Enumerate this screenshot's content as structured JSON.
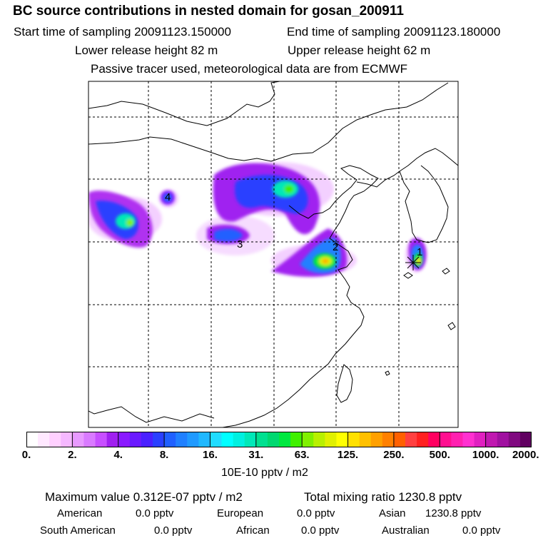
{
  "header": {
    "title": "BC  source contributions in nested domain for gosan_200911",
    "start_time": "Start time of sampling 20091123.150000",
    "end_time": "End time of sampling 20091123.180000",
    "lower_height": "Lower release height   82 m",
    "upper_height": "Upper release height   62 m",
    "note": "Passive tracer used, meteorological data are from ECMWF"
  },
  "map": {
    "markers": [
      {
        "label": "1"
      },
      {
        "label": "2"
      },
      {
        "label": "3"
      },
      {
        "label": "4"
      }
    ],
    "colorbar": {
      "ticks": [
        "0.",
        "2.",
        "4.",
        "8.",
        "16.",
        "31.",
        "63.",
        "125.",
        "250.",
        "500.",
        "1000.",
        "2000."
      ],
      "units": "10E-10 pptv / m2",
      "colors": [
        "#ffffff",
        "#ffe8ff",
        "#ffd0ff",
        "#f5b8ff",
        "#e89aff",
        "#d97aff",
        "#c74fff",
        "#a020f0",
        "#8a1aff",
        "#6a1aff",
        "#4a20ff",
        "#2a40ff",
        "#2060ff",
        "#2080ff",
        "#209aff",
        "#20b8ff",
        "#20dcff",
        "#00ffff",
        "#00f0e0",
        "#00e8b8",
        "#00e090",
        "#00d870",
        "#00e840",
        "#40f000",
        "#80f000",
        "#b8f000",
        "#e0f000",
        "#ffff00",
        "#ffe000",
        "#ffc000",
        "#ffa000",
        "#ff8000",
        "#ff6000",
        "#ff4040",
        "#ff2020",
        "#ff0060",
        "#ff1090",
        "#ff20b0",
        "#ff30d0",
        "#e020c0",
        "#c018b0",
        "#a010a0",
        "#800a80",
        "#600060"
      ]
    }
  },
  "stats": {
    "max_value": "Maximum value  0.312E-07 pptv / m2",
    "total_mixing": "Total mixing ratio     1230.8 pptv",
    "american": "American",
    "american_val": "0.0 pptv",
    "european": "European",
    "european_val": "0.0 pptv",
    "asian": "Asian",
    "asian_val": "1230.8 pptv",
    "south_american": "South American",
    "south_american_val": "0.0 pptv",
    "african": "African",
    "african_val": "0.0 pptv",
    "australian": "Australian",
    "australian_val": "0.0 pptv"
  }
}
